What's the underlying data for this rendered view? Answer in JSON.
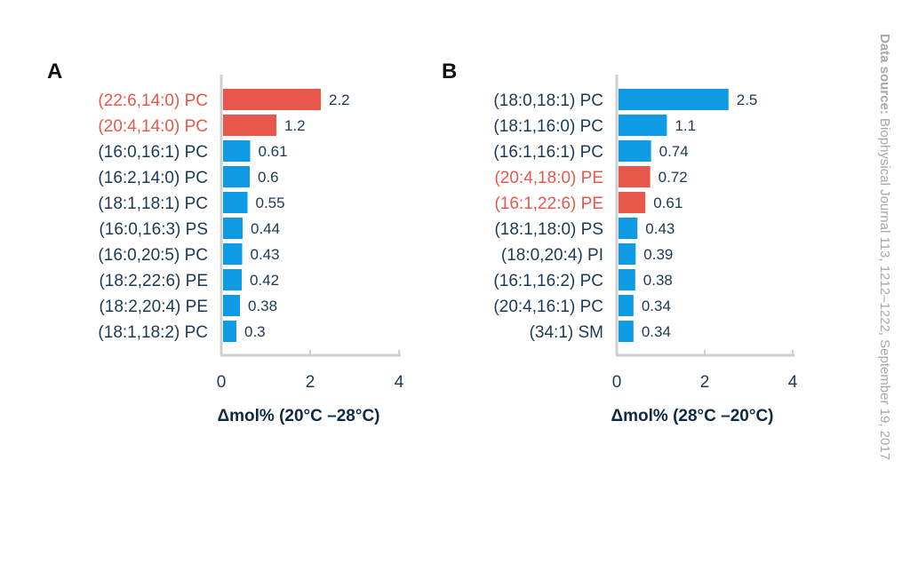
{
  "source": {
    "label": "Data source:",
    "text": " Biophysical Journal 113, 1212–1222, September 19, 2017"
  },
  "colors": {
    "red": "#E8584A",
    "blue": "#0E9BE3",
    "text": "#1B3A57",
    "axis": "#cfcfcf"
  },
  "chart_data": [
    {
      "type": "bar",
      "orientation": "horizontal",
      "panel": "A",
      "xlabel": "Δmol% (20°C –28°C)",
      "xlim": [
        0,
        4
      ],
      "xticks": [
        "0",
        "2",
        "4"
      ],
      "categories": [
        "(22:6,14:0) PC",
        "(20:4,14:0) PC",
        "(16:0,16:1) PC",
        "(16:2,14:0) PC",
        "(18:1,18:1) PC",
        "(16:0,16:3) PS",
        "(16:0,20:5) PC",
        "(18:2,22:6) PE",
        "(18:2,20:4) PE",
        "(18:1,18:2) PC"
      ],
      "values": [
        2.2,
        1.2,
        0.61,
        0.6,
        0.55,
        0.44,
        0.43,
        0.42,
        0.38,
        0.3
      ],
      "value_labels": [
        "2.2",
        "1.2",
        "0.61",
        "0.6",
        "0.55",
        "0.44",
        "0.43",
        "0.42",
        "0.38",
        "0.3"
      ],
      "highlight": [
        true,
        true,
        false,
        false,
        false,
        false,
        false,
        false,
        false,
        false
      ]
    },
    {
      "type": "bar",
      "orientation": "horizontal",
      "panel": "B",
      "xlabel": "Δmol% (28°C –20°C)",
      "xlim": [
        0,
        4
      ],
      "xticks": [
        "0",
        "2",
        "4"
      ],
      "categories": [
        "(18:0,18:1) PC",
        "(18:1,16:0) PC",
        "(16:1,16:1) PC",
        "(20:4,18:0) PE",
        "(16:1,22:6) PE",
        "(18:1,18:0) PS",
        "(18:0,20:4) PI",
        "(16:1,16:2) PC",
        "(20:4,16:1) PC",
        "(34:1) SM"
      ],
      "values": [
        2.5,
        1.1,
        0.74,
        0.72,
        0.61,
        0.43,
        0.39,
        0.38,
        0.34,
        0.34
      ],
      "value_labels": [
        "2.5",
        "1.1",
        "0.74",
        "0.72",
        "0.61",
        "0.43",
        "0.39",
        "0.38",
        "0.34",
        "0.34"
      ],
      "highlight": [
        false,
        false,
        false,
        true,
        true,
        false,
        false,
        false,
        false,
        false
      ]
    }
  ]
}
